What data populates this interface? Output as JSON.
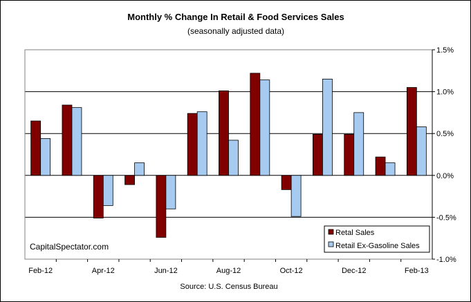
{
  "chart_data": {
    "type": "bar",
    "title": "Monthly %  Change In Retail & Food Services Sales",
    "subtitle": "(seasonally adjusted data)",
    "categories": [
      "Feb-12",
      "Mar-12",
      "Apr-12",
      "May-12",
      "Jun-12",
      "Jul-12",
      "Aug-12",
      "Sep-12",
      "Oct-12",
      "Nov-12",
      "Dec-12",
      "Jan-13",
      "Feb-13"
    ],
    "x_tick_labels": [
      "Feb-12",
      "",
      "Apr-12",
      "",
      "Jun-12",
      "",
      "Aug-12",
      "",
      "Oct-12",
      "",
      "Dec-12",
      "",
      "Feb-13"
    ],
    "series": [
      {
        "name": "Retal Sales",
        "color": "#800000",
        "values": [
          0.65,
          0.84,
          -0.51,
          -0.11,
          -0.74,
          0.74,
          1.01,
          1.22,
          -0.17,
          0.49,
          0.49,
          0.22,
          1.05
        ]
      },
      {
        "name": "Retail Ex-Gasoline Sales",
        "color": "#a6caf0",
        "values": [
          0.44,
          0.81,
          -0.36,
          0.15,
          -0.4,
          0.76,
          0.42,
          1.14,
          -0.49,
          1.15,
          0.75,
          0.15,
          0.58
        ]
      }
    ],
    "ylim": [
      -1.0,
      1.5
    ],
    "y_ticks": [
      "1.5%",
      "1.0%",
      "0.5%",
      "0.0%",
      "-0.5%",
      "-1.0%"
    ],
    "y_axis_side": "right",
    "grid": true,
    "legend_position": "bottom-right",
    "annotation": "CapitalSpectator.com",
    "source": "Source: U.S. Census Bureau"
  }
}
